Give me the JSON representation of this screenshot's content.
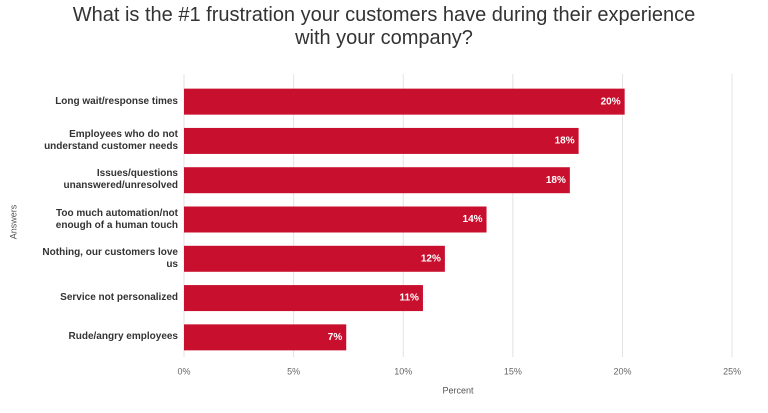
{
  "chart_data": {
    "type": "barh",
    "title": "What is the #1 frustration your customers have during their experience with your company?",
    "y_label": "Answers",
    "x_label": "Percent",
    "categories": [
      "Long wait/response times",
      "Employees who do not understand customer needs",
      "Issues/questions unanswered/unresolved",
      "Too much automation/not enough of a human touch",
      "Nothing, our customers love us",
      "Service not personalized",
      "Rude/angry employees"
    ],
    "values": [
      20.1,
      18,
      17.6,
      13.8,
      11.9,
      10.9,
      7.4
    ],
    "value_labels": [
      "20%",
      "18%",
      "18%",
      "14%",
      "12%",
      "11%",
      "7%"
    ],
    "color": "#c8102e",
    "xlim": [
      0,
      26
    ],
    "xticks": [
      {
        "value": 0,
        "label": "0%"
      },
      {
        "value": 5,
        "label": "5%"
      },
      {
        "value": 10,
        "label": "10%"
      },
      {
        "value": 15,
        "label": "15%"
      },
      {
        "value": 20,
        "label": "20%"
      },
      {
        "value": 25,
        "label": "25%"
      }
    ],
    "grid": true
  }
}
